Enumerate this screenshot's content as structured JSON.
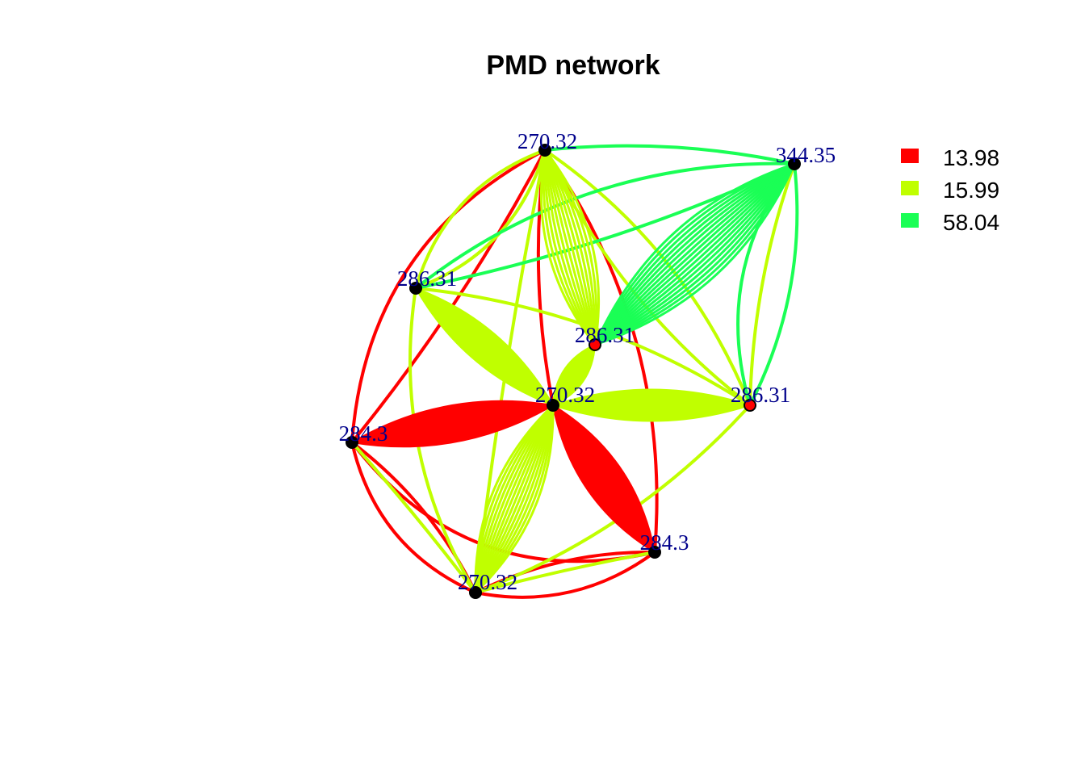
{
  "title": "PMD network",
  "colors": {
    "red": "#FF0000",
    "yellow": "#C0FF00",
    "green": "#1AFF55",
    "label": "#00008B",
    "node": "#000000"
  },
  "legend": [
    {
      "label": "13.98",
      "color": "#FF0000"
    },
    {
      "label": "15.99",
      "color": "#C0FF00"
    },
    {
      "label": "58.04",
      "color": "#1AFF55"
    }
  ],
  "nodes": [
    {
      "id": "n1",
      "label": "270.32",
      "fill": "#000000"
    },
    {
      "id": "n2",
      "label": "344.35",
      "fill": "#000000"
    },
    {
      "id": "n3",
      "label": "286.31",
      "fill": "#000000"
    },
    {
      "id": "n4",
      "label": "286.31",
      "fill": "#FF0000"
    },
    {
      "id": "n5",
      "label": "270.32",
      "fill": "#000000"
    },
    {
      "id": "n6",
      "label": "286.31",
      "fill": "#FF0000"
    },
    {
      "id": "n7",
      "label": "284.3",
      "fill": "#000000"
    },
    {
      "id": "n8",
      "label": "284.3",
      "fill": "#000000"
    },
    {
      "id": "n9",
      "label": "270.32",
      "fill": "#000000"
    }
  ]
}
